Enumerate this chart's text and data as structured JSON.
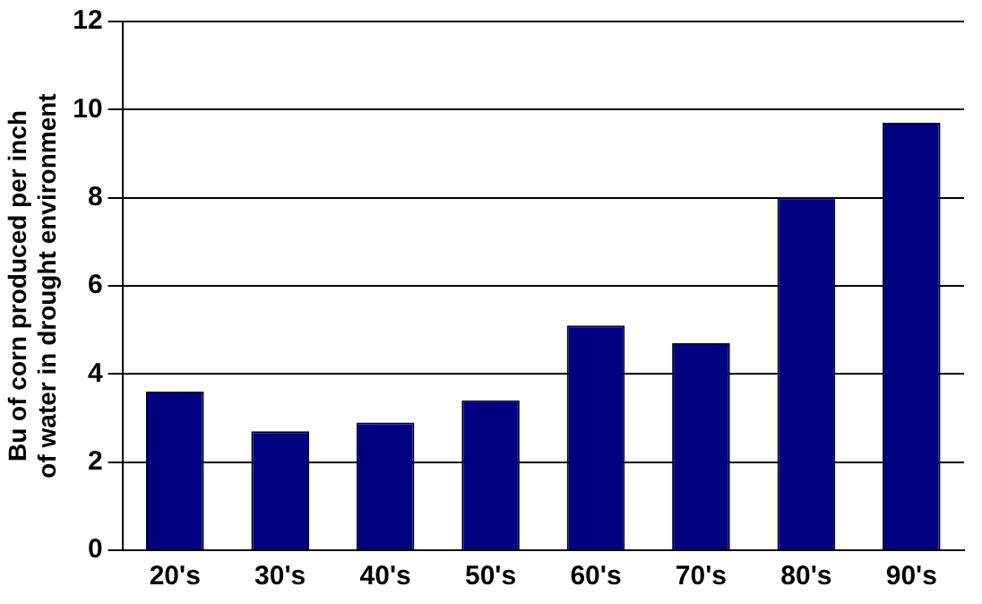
{
  "chart_data": {
    "type": "bar",
    "ylabel": "Bu of corn produced per inch of water in drought environment",
    "categories": [
      "20's",
      "30's",
      "40's",
      "50's",
      "60's",
      "70's",
      "80's",
      "90's"
    ],
    "values": [
      3.6,
      2.7,
      2.9,
      3.4,
      5.1,
      4.7,
      8.0,
      9.7
    ],
    "color": "#000080",
    "ylim": [
      0,
      12
    ],
    "yticks": [
      0,
      2,
      4,
      6,
      8,
      10,
      12
    ],
    "grid": "y"
  }
}
